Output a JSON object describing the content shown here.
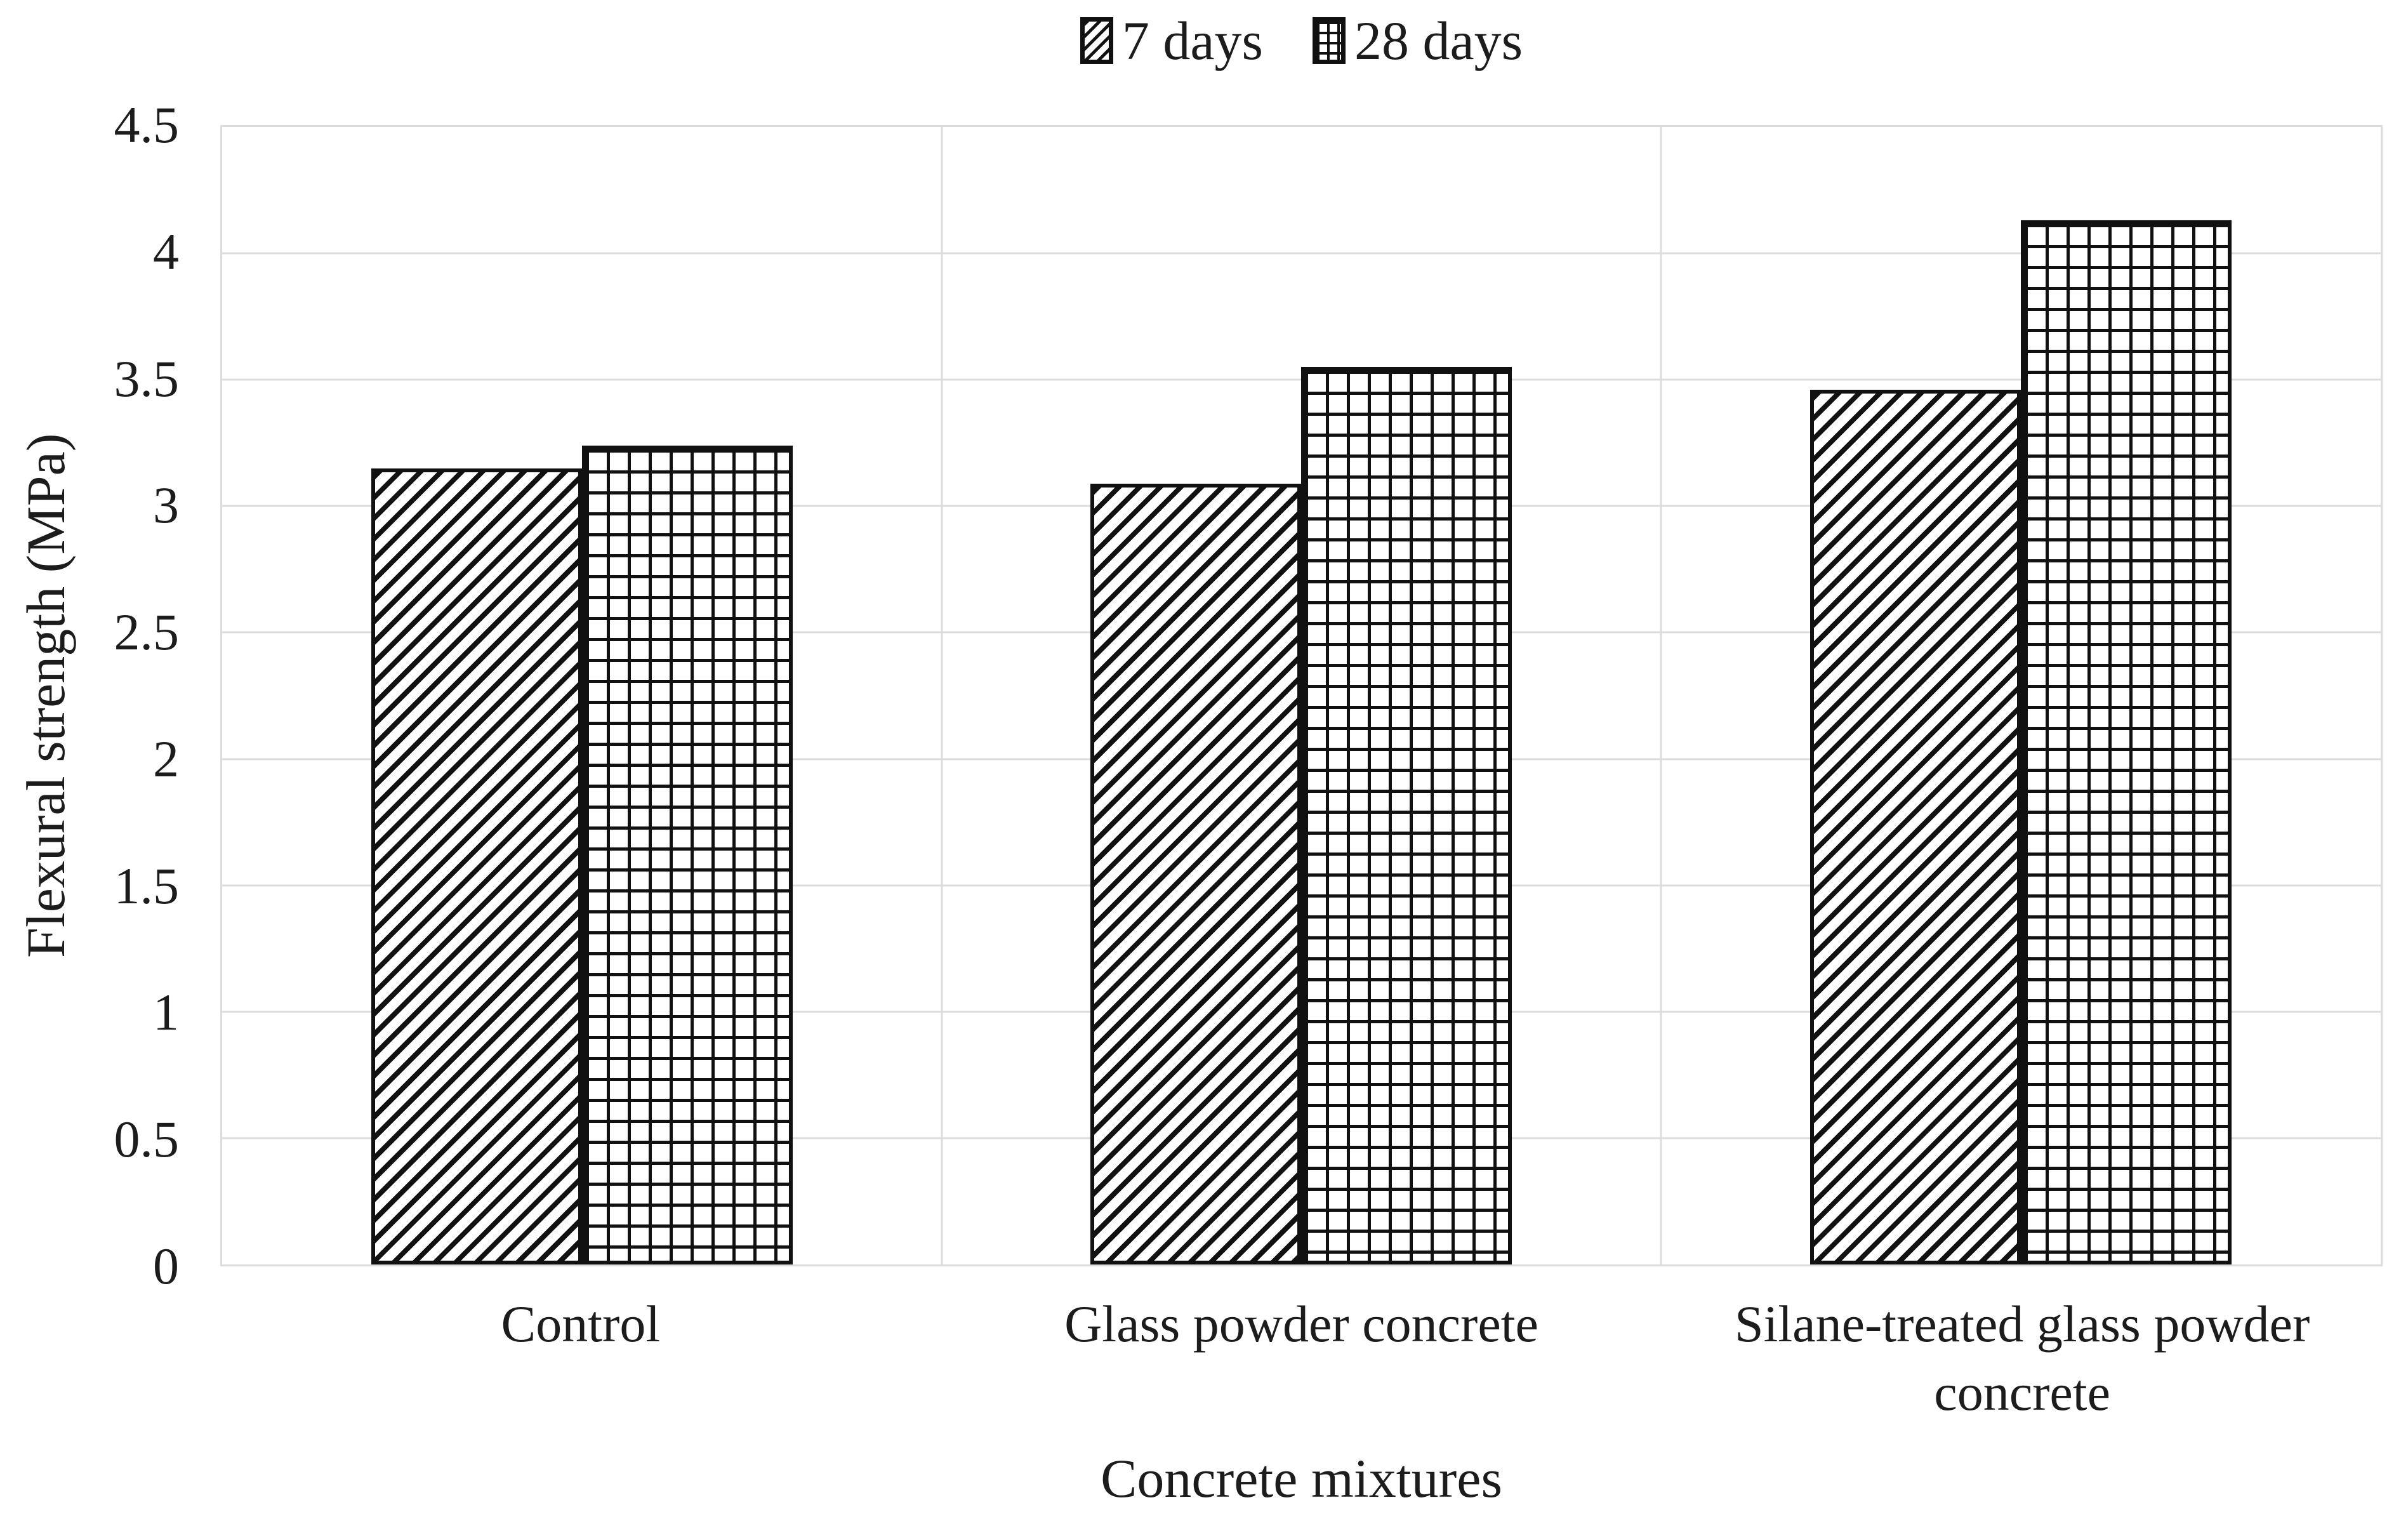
{
  "chart_data": {
    "type": "bar",
    "title": "",
    "categories": [
      "Control",
      "Glass powder concrete",
      "Silane-treated glass powder concrete"
    ],
    "series": [
      {
        "name": "7 days",
        "pattern": "diagonal-hatch",
        "values": [
          3.15,
          3.09,
          3.46
        ]
      },
      {
        "name": "28 days",
        "pattern": "grid",
        "values": [
          3.24,
          3.55,
          4.13
        ]
      }
    ],
    "xlabel": "Concrete mixtures",
    "ylabel": "Flexural strength (MPa)",
    "ylim": [
      0,
      4.5
    ],
    "ytick_step": 0.5,
    "ytick_labels": [
      "0",
      "0.5",
      "1",
      "1.5",
      "2",
      "2.5",
      "3",
      "3.5",
      "4",
      "4.5"
    ],
    "grid": "horizontal major gridlines + vertical category separators",
    "legend_position": "top-center",
    "colors": {
      "bar_fill": "#ffffff",
      "bar_stroke": "#111111",
      "gridline": "#dcdcdc",
      "text": "#1c1c1c",
      "background": "#ffffff"
    }
  }
}
